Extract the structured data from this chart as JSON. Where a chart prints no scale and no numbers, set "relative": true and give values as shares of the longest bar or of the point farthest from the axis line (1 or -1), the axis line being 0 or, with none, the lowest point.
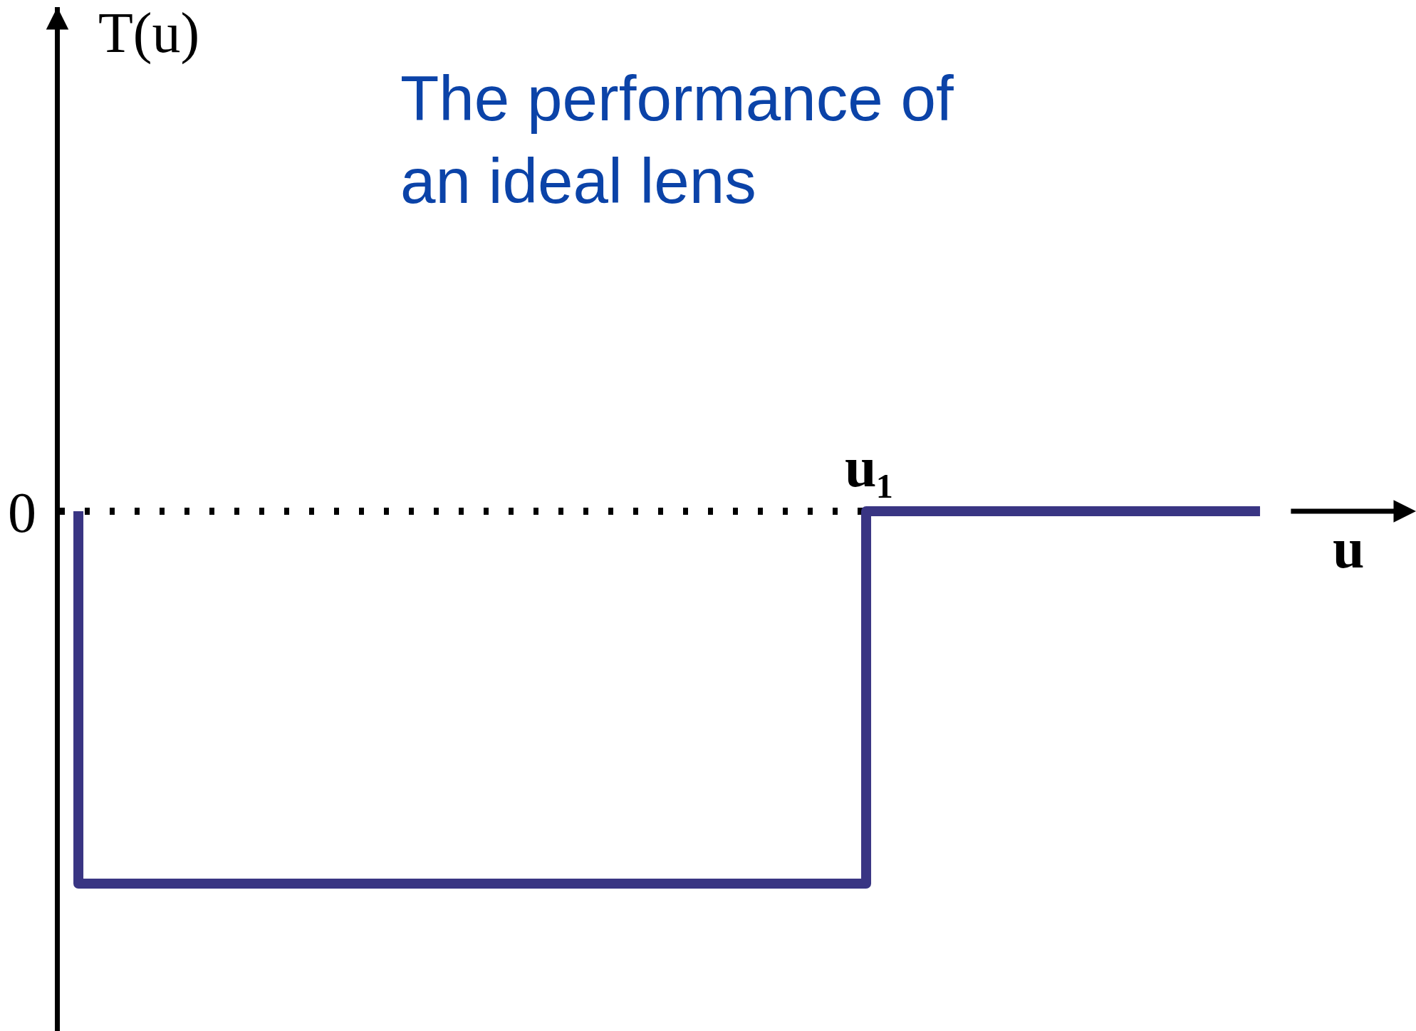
{
  "chart_data": {
    "type": "step",
    "title": "The performance of an ideal lens",
    "xlabel": "u",
    "relative": true,
    "categories": [
      null,
      null,
      null,
      null
    ],
    "series": [
      {
        "color": "#393583",
        "values": [
          0,
          -1,
          -1,
          0
        ]
      }
    ],
    "annotations": [
      "0",
      "u₁",
      "T(u)"
    ]
  }
}
